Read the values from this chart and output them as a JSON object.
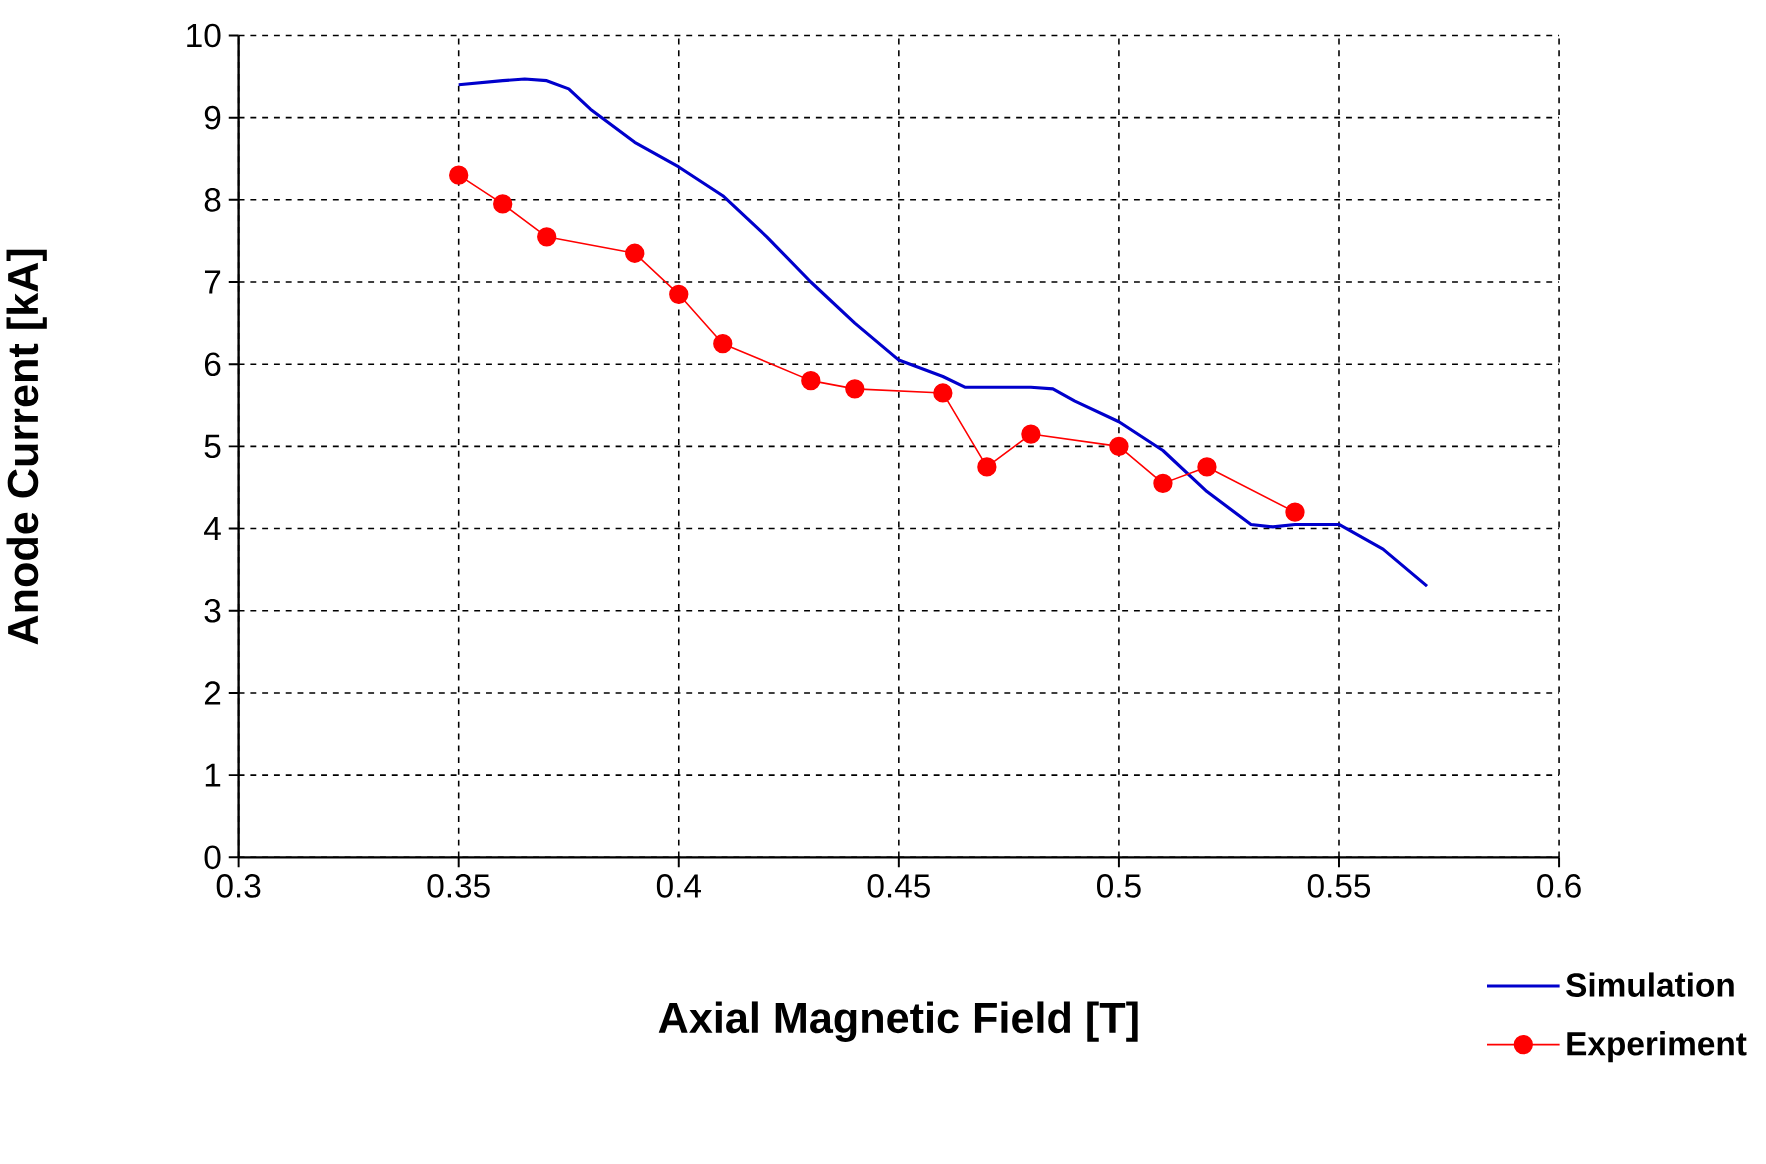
{
  "chart_data": {
    "type": "line",
    "xlabel": "Axial Magnetic Field [T]",
    "ylabel": "Anode Current [kA]",
    "x": [
      0.35,
      0.36,
      0.365,
      0.37,
      0.375,
      0.38,
      0.39,
      0.4,
      0.41,
      0.42,
      0.43,
      0.44,
      0.45,
      0.46,
      0.465,
      0.47,
      0.48,
      0.485,
      0.49,
      0.5,
      0.51,
      0.52,
      0.53,
      0.535,
      0.54,
      0.55,
      0.56,
      0.57
    ],
    "series": [
      {
        "name": "Simulation",
        "color": "#0000cc",
        "marker": "none",
        "values": [
          9.4,
          9.45,
          9.47,
          9.45,
          9.35,
          9.1,
          8.7,
          8.4,
          8.05,
          7.55,
          7.0,
          6.5,
          6.05,
          5.85,
          5.72,
          5.72,
          5.72,
          5.7,
          5.55,
          5.3,
          4.95,
          4.45,
          4.05,
          4.02,
          4.05,
          4.05,
          3.75,
          3.3
        ]
      },
      {
        "name": "Experiment",
        "color": "#ff0000",
        "marker": "circle",
        "x": [
          0.35,
          0.36,
          0.37,
          0.39,
          0.4,
          0.41,
          0.43,
          0.44,
          0.46,
          0.47,
          0.48,
          0.5,
          0.51,
          0.52,
          0.54
        ],
        "values": [
          8.3,
          7.95,
          7.55,
          7.35,
          6.85,
          6.25,
          5.8,
          5.7,
          5.65,
          4.75,
          5.15,
          5.0,
          4.55,
          4.75,
          4.2
        ]
      }
    ],
    "xlim": [
      0.3,
      0.6
    ],
    "xticks": [
      0.3,
      0.35,
      0.4,
      0.45,
      0.5,
      0.55,
      0.6
    ],
    "ylim": [
      0,
      10
    ],
    "yticks": [
      0,
      1,
      2,
      3,
      4,
      5,
      6,
      7,
      8,
      9,
      10
    ],
    "grid": true,
    "legend": "bottom right",
    "line_style": "solid"
  }
}
